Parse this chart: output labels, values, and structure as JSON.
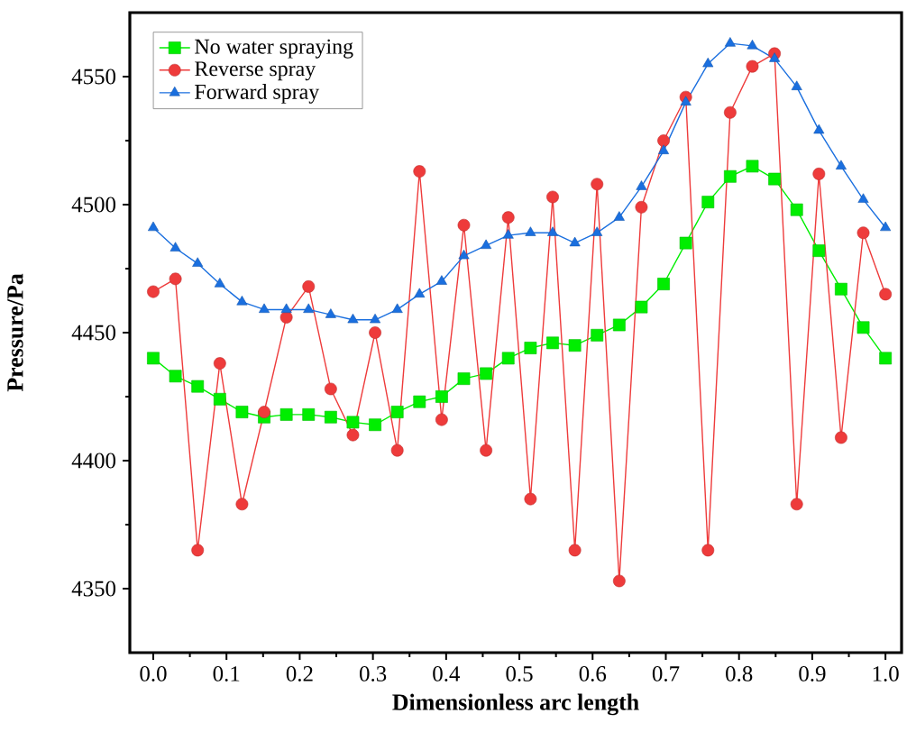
{
  "chart_data": {
    "type": "line",
    "xlabel": "Dimensionless arc length",
    "ylabel": "Pressure/Pa",
    "x": [
      0,
      0.0303,
      0.0606,
      0.0909,
      0.1212,
      0.1515,
      0.1818,
      0.2121,
      0.2424,
      0.2727,
      0.303,
      0.3333,
      0.3636,
      0.3939,
      0.4242,
      0.4545,
      0.4848,
      0.5152,
      0.5455,
      0.5758,
      0.6061,
      0.6364,
      0.6667,
      0.697,
      0.7273,
      0.7576,
      0.7879,
      0.8182,
      0.8485,
      0.8788,
      0.9091,
      0.9394,
      0.9697,
      1.0
    ],
    "series": [
      {
        "name": "No water spraying",
        "color": "#00ee00",
        "marker": "square",
        "values": [
          4440,
          4433,
          4429,
          4424,
          4419,
          4417,
          4418,
          4418,
          4417,
          4415,
          4414,
          4419,
          4423,
          4425,
          4432,
          4434,
          4440,
          4444,
          4446,
          4445,
          4449,
          4453,
          4460,
          4469,
          4485,
          4501,
          4511,
          4515,
          4510,
          4498,
          4482,
          4467,
          4452,
          4440
        ]
      },
      {
        "name": "Reverse spray",
        "color": "#ee3b3b",
        "marker": "circle",
        "values": [
          4466,
          4471,
          4365,
          4438,
          4383,
          4419,
          4456,
          4468,
          4428,
          4410,
          4450,
          4404,
          4513,
          4416,
          4492,
          4404,
          4495,
          4385,
          4503,
          4365,
          4508,
          4353,
          4499,
          4525,
          4542,
          4365,
          4536,
          4554,
          4559,
          4383,
          4512,
          4409,
          4489,
          4465
        ]
      },
      {
        "name": "Forward spray",
        "color": "#1a6fdf",
        "marker": "triangle",
        "values": [
          4491,
          4483,
          4477,
          4469,
          4462,
          4459,
          4459,
          4459,
          4457,
          4455,
          4455,
          4459,
          4465,
          4470,
          4480,
          4484,
          4488,
          4489,
          4489,
          4485,
          4489,
          4495,
          4507,
          4521,
          4540,
          4555,
          4563,
          4562,
          4557,
          4546,
          4529,
          4515,
          4502,
          4491
        ]
      }
    ],
    "xlim": [
      -0.032,
      1.022
    ],
    "ylim": [
      4325,
      4575
    ],
    "xticks": [
      {
        "value": 0,
        "label": "0.0"
      },
      {
        "value": 0.1,
        "label": "0.1"
      },
      {
        "value": 0.2,
        "label": "0.2"
      },
      {
        "value": 0.3,
        "label": "0.3"
      },
      {
        "value": 0.4,
        "label": "0.4"
      },
      {
        "value": 0.5,
        "label": "0.5"
      },
      {
        "value": 0.6,
        "label": "0.6"
      },
      {
        "value": 0.7,
        "label": "0.7"
      },
      {
        "value": 0.8,
        "label": "0.8"
      },
      {
        "value": 0.9,
        "label": "0.9"
      },
      {
        "value": 1.0,
        "label": "1.0"
      }
    ],
    "yticks": [
      4350,
      4400,
      4450,
      4500,
      4550
    ],
    "grid": false,
    "legend": "top left",
    "line_style": "solid"
  }
}
